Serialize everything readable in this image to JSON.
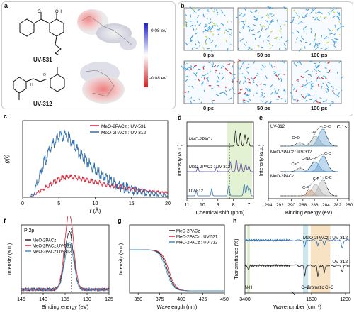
{
  "panel_a": {
    "letter": "a",
    "mol1_name": "UV-531",
    "mol2_name": "UV-312",
    "colorbar_max": "0.08 eV",
    "colorbar_min": "-0.08 eV"
  },
  "panel_b": {
    "letter": "b",
    "times": [
      "0 ps",
      "50 ps",
      "100 ps"
    ]
  },
  "chart_data": [
    {
      "panel": "c",
      "type": "line",
      "ylabel": "g(r)",
      "xlabel": "r (Å)",
      "xlim": [
        0,
        20
      ],
      "xticks": [
        0,
        5,
        10,
        15,
        20
      ],
      "series": [
        {
          "name": "MeO-2PACz : UV-531",
          "color": "#d6263b",
          "points": [
            [
              0.8,
              0
            ],
            [
              1.5,
              0.2
            ],
            [
              2.5,
              0.7
            ],
            [
              3.5,
              1.2
            ],
            [
              4.5,
              1.6
            ],
            [
              5.5,
              1.9
            ],
            [
              6.5,
              2.0
            ],
            [
              7.5,
              1.9
            ],
            [
              9,
              1.65
            ],
            [
              11,
              1.35
            ],
            [
              13,
              1.1
            ],
            [
              15,
              0.85
            ],
            [
              17,
              0.65
            ],
            [
              19,
              0.5
            ],
            [
              20,
              0.45
            ]
          ]
        },
        {
          "name": "MeO-2PACz : UV-312",
          "color": "#2f6fad",
          "points": [
            [
              0.8,
              0
            ],
            [
              1.5,
              0.4
            ],
            [
              2,
              1.5
            ],
            [
              3,
              3.5
            ],
            [
              4,
              5.0
            ],
            [
              5,
              5.8
            ],
            [
              5.8,
              6.0
            ],
            [
              6.5,
              5.6
            ],
            [
              7.5,
              4.6
            ],
            [
              8.5,
              3.8
            ],
            [
              9.5,
              3.1
            ],
            [
              10.5,
              2.5
            ],
            [
              12,
              1.8
            ],
            [
              13.5,
              1.3
            ],
            [
              15,
              0.9
            ],
            [
              17,
              0.55
            ],
            [
              19,
              0.3
            ],
            [
              20,
              0.2
            ]
          ]
        }
      ]
    },
    {
      "panel": "d",
      "type": "line",
      "ylabel": "Intensity (a.u.)",
      "xlabel": "Chemical shift (ppm)",
      "xticks": [
        11,
        10,
        9,
        8,
        7
      ],
      "traces": [
        "MeO-2PACz",
        "MeO-2PACz : UV-312",
        "UV-312"
      ]
    },
    {
      "panel": "e",
      "type": "line",
      "title": "C 1s",
      "ylabel": "Intensity (a.u.)",
      "xlabel": "Binding energy (eV)",
      "xticks": [
        294,
        292,
        290,
        288,
        286,
        284,
        282,
        280
      ],
      "traces": [
        {
          "name": "UV-312",
          "peaks": [
            "C=O",
            "C-N",
            "C-C"
          ]
        },
        {
          "name": "MeO-2PACz : UV-312",
          "peaks": [
            "C=O",
            "C-N/C-P",
            "C-C"
          ]
        },
        {
          "name": "MeO-2PACz",
          "peaks": [
            "C-P",
            "C-N",
            "C-C"
          ]
        }
      ]
    },
    {
      "panel": "f",
      "type": "line",
      "title": "P 2p",
      "ylabel": "Intensity (a.u.)",
      "xlabel": "Binding energy (eV)",
      "xticks": [
        145,
        140,
        135,
        130,
        125
      ],
      "series": [
        {
          "name": "MeO-2PACz",
          "color": "#222222"
        },
        {
          "name": "MeO-2PACz:UV-531",
          "color": "#d6263b"
        },
        {
          "name": "MeO-2PACz:UV-312",
          "color": "#3a8fc7"
        }
      ]
    },
    {
      "panel": "g",
      "type": "line",
      "ylabel": "Intensity (a.u.)",
      "xlabel": "Wavelength (nm)",
      "xticks": [
        350,
        375,
        400,
        425,
        450
      ],
      "series": [
        {
          "name": "MeO-2PACz",
          "color": "#222222"
        },
        {
          "name": "MeO-2PACz : UV-531",
          "color": "#d6263b"
        },
        {
          "name": "MeO-2PACz : UV-312",
          "color": "#3a8fc7"
        }
      ]
    },
    {
      "panel": "h",
      "type": "line",
      "ylabel": "Transmittance (%)",
      "xlabel": "Wavenumber (cm⁻¹)",
      "xticks": [
        3400,
        1600,
        1200
      ],
      "series": [
        {
          "name": "MeO-2PACz : UV-312",
          "color": "#2f6fad"
        },
        {
          "name": "UV-312",
          "color": "#222222"
        }
      ],
      "bands": [
        "N-H",
        "C=O",
        "Aromatic C=C"
      ]
    }
  ]
}
